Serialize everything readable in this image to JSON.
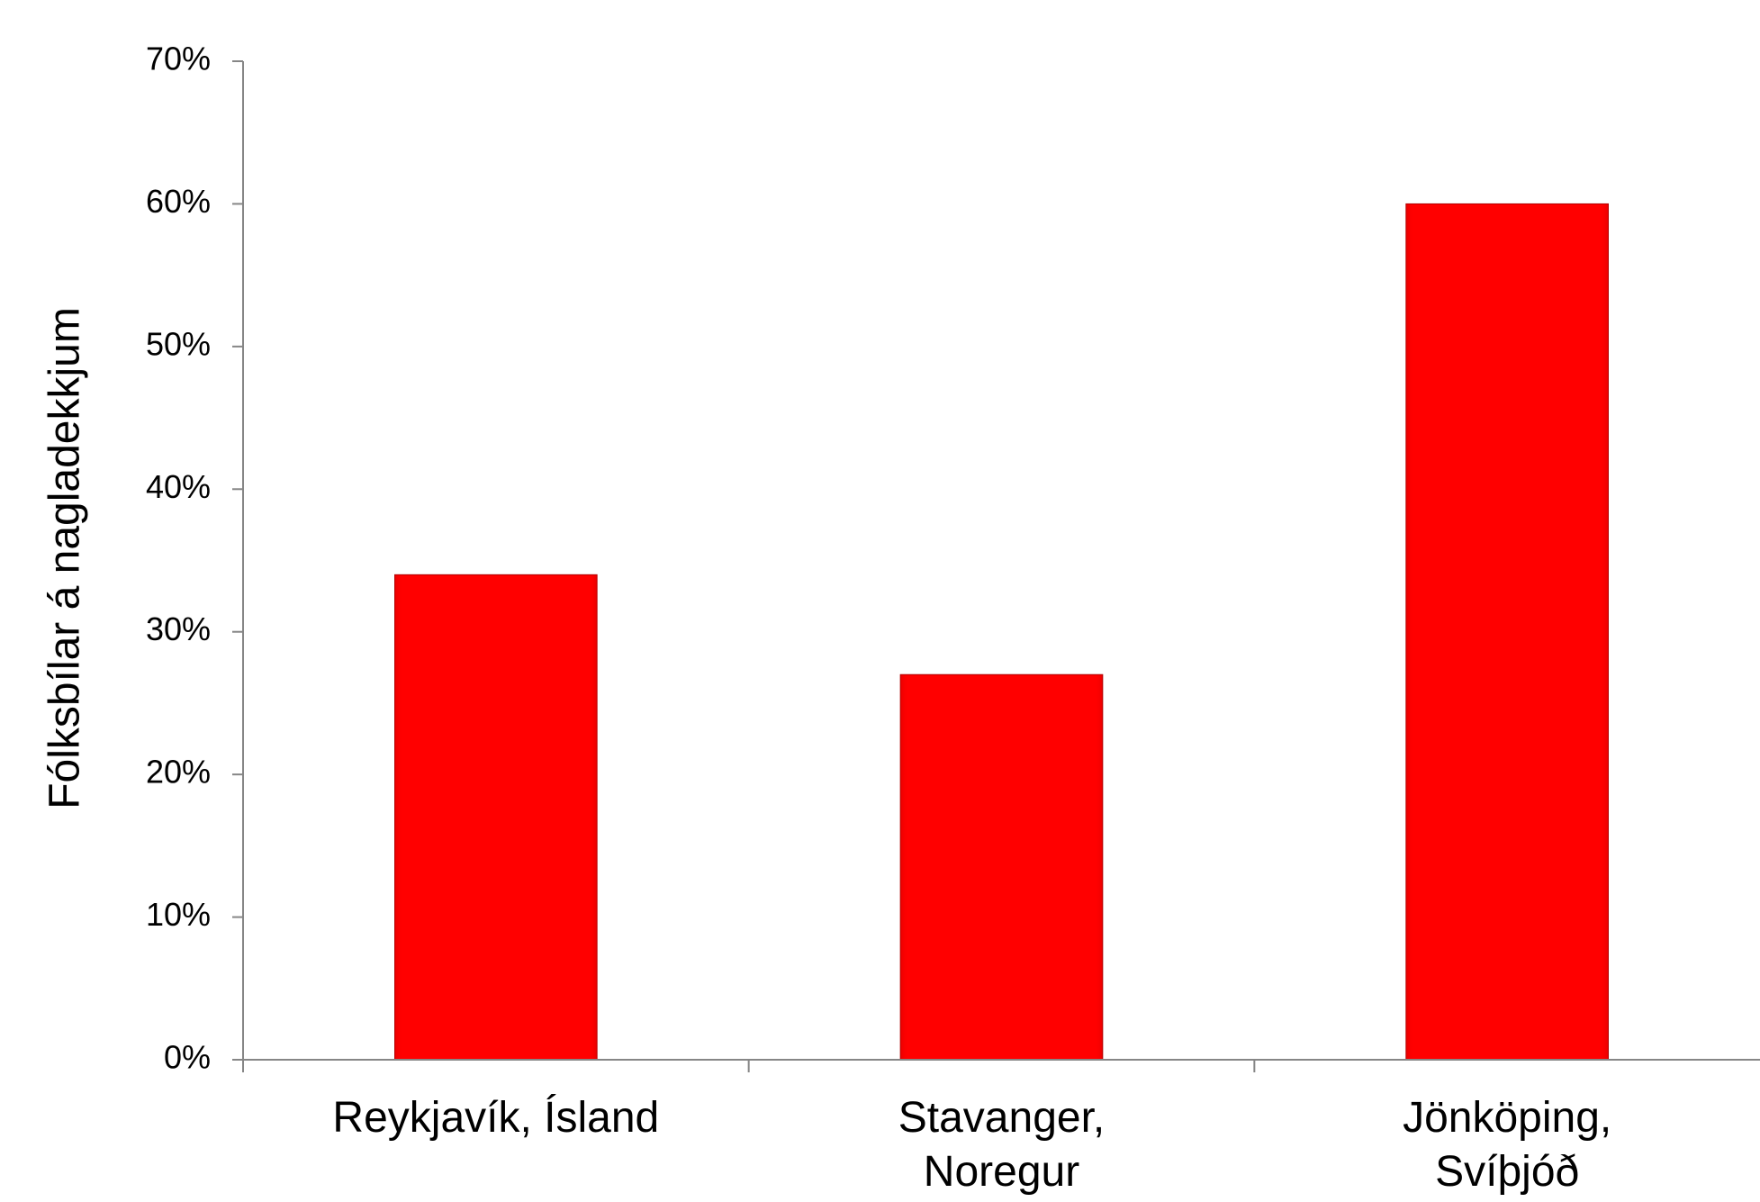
{
  "chart_data": {
    "type": "bar",
    "categories": [
      [
        "Reykjavík, Ísland"
      ],
      [
        "Stavanger,",
        "Noregur"
      ],
      [
        "Jönköping,",
        "Svíþjóð"
      ]
    ],
    "series": [
      {
        "values": [
          34,
          27,
          60
        ],
        "color": "#ff0000"
      }
    ],
    "ylabel": "Fólksbílar á nagladekkjum",
    "xlabel": "",
    "title": "",
    "ylim": [
      0,
      70
    ],
    "yticks": [
      0,
      10,
      20,
      30,
      40,
      50,
      60,
      70
    ],
    "ytick_labels": [
      "0%",
      "10%",
      "20%",
      "30%",
      "40%",
      "50%",
      "60%",
      "70%"
    ],
    "grid": false,
    "legend": "none"
  }
}
